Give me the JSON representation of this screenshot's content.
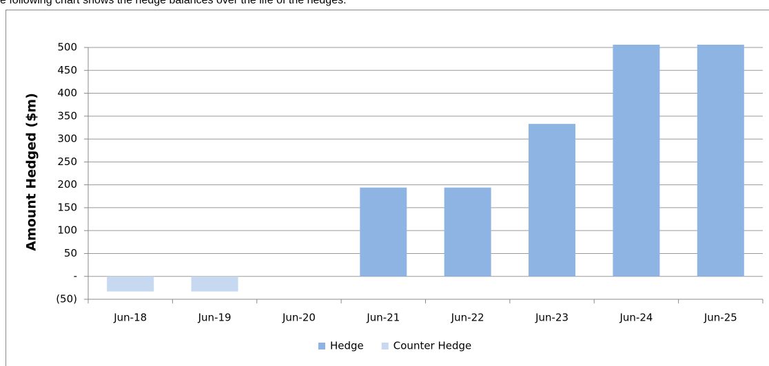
{
  "caption": "e following chart shows the hedge balances over the life of the hedges.",
  "chart_data": {
    "type": "bar",
    "y_label": "Amount Hedged ($m)",
    "categories": [
      "Jun-18",
      "Jun-19",
      "Jun-20",
      "Jun-21",
      "Jun-22",
      "Jun-23",
      "Jun-24",
      "Jun-25"
    ],
    "series": [
      {
        "name": "Hedge",
        "color": "#8eb4e3",
        "values": [
          null,
          null,
          null,
          194,
          194,
          333,
          506,
          506
        ]
      },
      {
        "name": "Counter Hedge",
        "color": "#c6d9f1",
        "values": [
          -33,
          -33,
          null,
          null,
          null,
          null,
          null,
          null
        ]
      }
    ],
    "ylim": [
      -50,
      500
    ],
    "yticks": [
      {
        "value": -50,
        "label": "(50)"
      },
      {
        "value": 0,
        "label": "-"
      },
      50,
      100,
      150,
      200,
      250,
      300,
      350,
      400,
      450,
      500
    ],
    "grid": true,
    "legend": "bottom"
  }
}
